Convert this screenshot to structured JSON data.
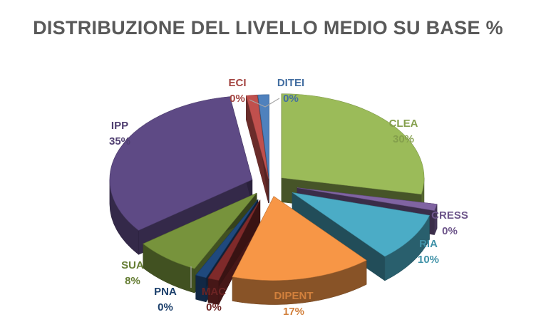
{
  "chart_data": {
    "type": "pie",
    "title": "DISTRIBUZIONE DEL LIVELLO MEDIO SU BASE %",
    "slices": [
      {
        "name": "CLEA",
        "value": 30,
        "label": "30%",
        "color": "#9BBB59"
      },
      {
        "name": "CRESS",
        "value": 0,
        "label": "0%",
        "color": "#8064A2"
      },
      {
        "name": "RIA",
        "value": 10,
        "label": "10%",
        "color": "#4BACC6"
      },
      {
        "name": "DIPENT",
        "value": 17,
        "label": "17%",
        "color": "#F79646"
      },
      {
        "name": "MAC",
        "value": 0,
        "label": "0%",
        "color": "#7F2A2A"
      },
      {
        "name": "PNA",
        "value": 0,
        "label": "0%",
        "color": "#1F497D"
      },
      {
        "name": "SUA",
        "value": 8,
        "label": "8%",
        "color": "#77933C"
      },
      {
        "name": "IPP",
        "value": 35,
        "label": "35%",
        "color": "#5E4A85"
      },
      {
        "name": "ECI",
        "value": 0,
        "label": "0%",
        "color": "#C0504D"
      },
      {
        "name": "DITEI",
        "value": 0,
        "label": "0%",
        "color": "#4F81BD"
      }
    ],
    "legend": "none"
  }
}
